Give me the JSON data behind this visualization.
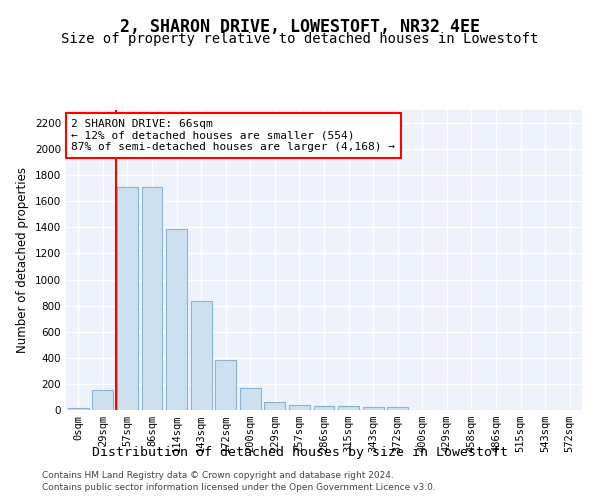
{
  "title": "2, SHARON DRIVE, LOWESTOFT, NR32 4EE",
  "subtitle": "Size of property relative to detached houses in Lowestoft",
  "xlabel": "Distribution of detached houses by size in Lowestoft",
  "ylabel": "Number of detached properties",
  "bar_color": "#cce0f0",
  "bar_edge_color": "#8ab4d4",
  "background_color": "#eef2fa",
  "grid_color": "#ffffff",
  "bin_labels": [
    "0sqm",
    "29sqm",
    "57sqm",
    "86sqm",
    "114sqm",
    "143sqm",
    "172sqm",
    "200sqm",
    "229sqm",
    "257sqm",
    "286sqm",
    "315sqm",
    "343sqm",
    "372sqm",
    "400sqm",
    "429sqm",
    "458sqm",
    "486sqm",
    "515sqm",
    "543sqm",
    "572sqm"
  ],
  "bar_heights": [
    15,
    155,
    1710,
    1710,
    1390,
    835,
    385,
    165,
    65,
    35,
    30,
    30,
    20,
    20,
    0,
    0,
    0,
    0,
    0,
    0,
    0
  ],
  "ylim": [
    0,
    2300
  ],
  "yticks": [
    0,
    200,
    400,
    600,
    800,
    1000,
    1200,
    1400,
    1600,
    1800,
    2000,
    2200
  ],
  "vline_x_data": 1.55,
  "annotation_line1": "2 SHARON DRIVE: 66sqm",
  "annotation_line2": "← 12% of detached houses are smaller (554)",
  "annotation_line3": "87% of semi-detached houses are larger (4,168) →",
  "footer_line1": "Contains HM Land Registry data © Crown copyright and database right 2024.",
  "footer_line2": "Contains public sector information licensed under the Open Government Licence v3.0.",
  "title_fontsize": 12,
  "subtitle_fontsize": 10,
  "xlabel_fontsize": 9.5,
  "ylabel_fontsize": 8.5,
  "tick_fontsize": 7.5,
  "annotation_fontsize": 8,
  "footer_fontsize": 6.5
}
